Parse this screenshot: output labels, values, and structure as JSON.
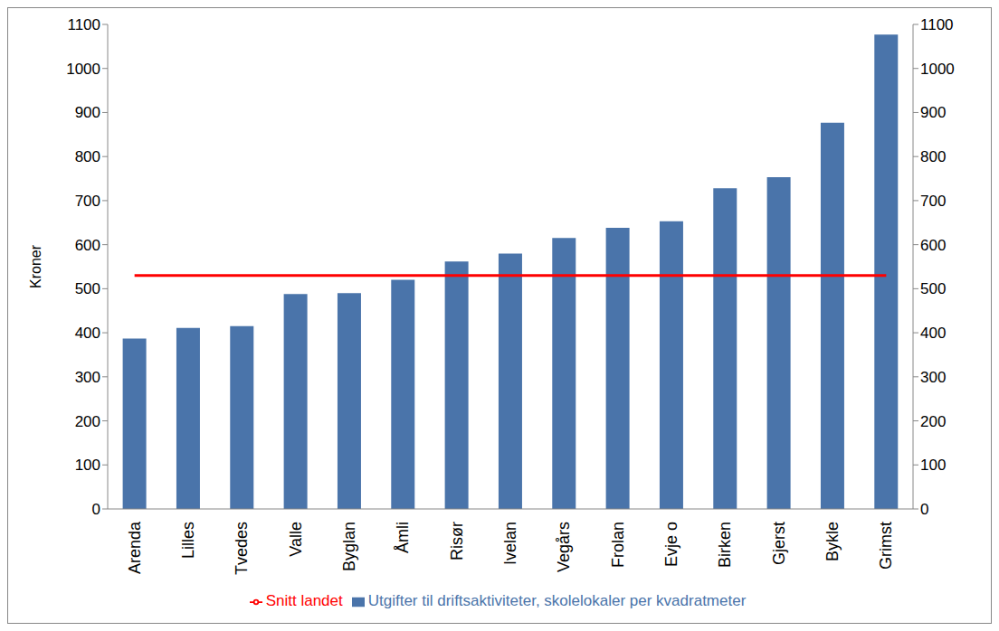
{
  "chart_data": {
    "type": "bar",
    "ylabel": "Kroner",
    "categories": [
      "Arenda",
      "Lilles",
      "Tvedes",
      "Valle",
      "Byglan",
      "Åmli",
      "Risør",
      "Ivelan",
      "Vegårs",
      "Frolan",
      "Evje o",
      "Birken",
      "Gjerst",
      "Bykle",
      "Grimst"
    ],
    "series": [
      {
        "name": "Utgifter til driftsaktiviteter, skolelokaler per kvadratmeter",
        "type": "bar",
        "color": "#4a74aa",
        "values": [
          387,
          411,
          415,
          488,
          490,
          520,
          562,
          580,
          615,
          638,
          653,
          728,
          753,
          877,
          1077
        ]
      },
      {
        "name": "Snitt landet",
        "type": "line",
        "color": "#ff0000",
        "values": [
          530,
          530,
          530,
          530,
          530,
          530,
          530,
          530,
          530,
          530,
          530,
          530,
          530,
          530,
          530
        ]
      }
    ],
    "ylim": [
      0,
      1100
    ],
    "yticks": [
      0,
      100,
      200,
      300,
      400,
      500,
      600,
      700,
      800,
      900,
      1000,
      1100
    ],
    "y2lim": [
      0,
      1100
    ],
    "y2ticks": [
      0,
      100,
      200,
      300,
      400,
      500,
      600,
      700,
      800,
      900,
      1000,
      1100
    ],
    "grid": false,
    "legend": "bottom"
  }
}
